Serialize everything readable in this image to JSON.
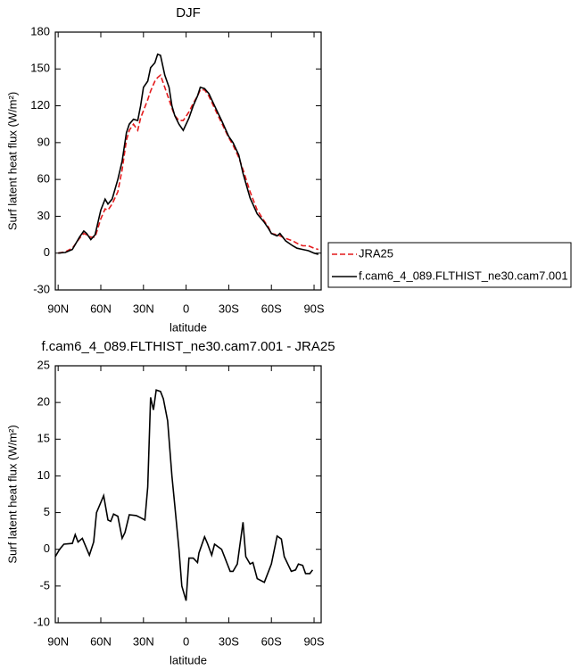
{
  "chart_data": [
    {
      "type": "line",
      "title": "DJF",
      "xlabel": "latitude",
      "ylabel": "Surf latent heat flux (W/m²)",
      "xlim": [
        92,
        -95
      ],
      "ylim": [
        -30,
        180
      ],
      "xticks": [
        {
          "value": 90,
          "label": "90N"
        },
        {
          "value": 60,
          "label": "60N"
        },
        {
          "value": 30,
          "label": "30N"
        },
        0,
        {
          "value": -30,
          "label": "30S"
        },
        {
          "value": -60,
          "label": "60S"
        },
        {
          "value": -90,
          "label": "90S"
        }
      ],
      "yticks": [
        -30,
        0,
        30,
        60,
        90,
        120,
        150,
        180
      ],
      "legend": "right",
      "x": [
        90,
        85,
        80,
        75,
        72,
        70,
        67,
        64,
        60,
        57,
        55,
        52,
        48,
        45,
        42,
        40,
        37,
        34,
        32,
        30,
        27,
        25,
        22,
        20,
        18,
        15,
        12,
        10,
        8,
        5,
        2,
        -2,
        -5,
        -8,
        -10,
        -13,
        -16,
        -20,
        -25,
        -30,
        -33,
        -37,
        -40,
        -45,
        -50,
        -55,
        -58,
        -60,
        -64,
        -66,
        -70,
        -75,
        -78,
        -82,
        -86,
        -90,
        -93
      ],
      "series": [
        {
          "name": "JRA25",
          "color": "#e41a1c",
          "linestyle": "dashed",
          "values": [
            0,
            1,
            4,
            12,
            16,
            15,
            13,
            13,
            28,
            36,
            35,
            40,
            50,
            68,
            92,
            100,
            105,
            100,
            110,
            116,
            125,
            132,
            140,
            143,
            145,
            135,
            125,
            118,
            112,
            108,
            108,
            115,
            122,
            128,
            133,
            133,
            128,
            118,
            106,
            94,
            88,
            78,
            68,
            50,
            35,
            26,
            21,
            16,
            15,
            14,
            12,
            10,
            8,
            6,
            6,
            4,
            3
          ]
        },
        {
          "name": "f.cam6_4_089.FLTHIST_ne30.cam7.001",
          "color": "#000000",
          "linestyle": "solid",
          "values": [
            0,
            0.5,
            3,
            13,
            18,
            16,
            11,
            15,
            35,
            44,
            40,
            44,
            60,
            75,
            98,
            105,
            109,
            108,
            120,
            135,
            140,
            151,
            155,
            162,
            161,
            145,
            135,
            120,
            112,
            105,
            100,
            110,
            120,
            128,
            135,
            134,
            130,
            120,
            108,
            95,
            90,
            80,
            65,
            45,
            32,
            25,
            20,
            16,
            14,
            16,
            10,
            6,
            4,
            3,
            2,
            0,
            -1
          ]
        }
      ]
    },
    {
      "type": "line",
      "title": "f.cam6_4_089.FLTHIST_ne30.cam7.001 - JRA25",
      "xlabel": "latitude",
      "ylabel": "Surf latent heat flux (W/m²)",
      "xlim": [
        92,
        -95
      ],
      "ylim": [
        -10,
        25
      ],
      "xticks": [
        {
          "value": 90,
          "label": "90N"
        },
        {
          "value": 60,
          "label": "60N"
        },
        {
          "value": 30,
          "label": "30N"
        },
        0,
        {
          "value": -30,
          "label": "30S"
        },
        {
          "value": -60,
          "label": "60S"
        },
        {
          "value": -90,
          "label": "90S"
        }
      ],
      "yticks": [
        -10,
        -5,
        0,
        5,
        10,
        15,
        20,
        25
      ],
      "x": [
        92,
        89,
        86,
        80,
        78,
        76,
        73,
        68,
        65,
        63,
        58,
        55,
        53,
        51,
        48,
        45,
        43,
        40,
        35,
        32,
        29,
        27,
        25,
        23,
        21,
        18,
        16,
        13,
        10,
        8,
        5,
        3,
        0,
        -2,
        -5,
        -8,
        -9,
        -13,
        -15,
        -18,
        -20,
        -25,
        -28,
        -31,
        -33,
        -36,
        -40,
        -42,
        -45,
        -47,
        -50,
        -55,
        -60,
        -64,
        -67,
        -69,
        -74,
        -77,
        -79,
        -82,
        -84,
        -87,
        -89
      ],
      "series": [
        {
          "color": "#000000",
          "linestyle": "solid",
          "values": [
            -1,
            0,
            0.7,
            0.8,
            2,
            1,
            1.5,
            -0.8,
            1,
            5,
            7.3,
            4,
            3.8,
            4.8,
            4.5,
            1.5,
            2.3,
            4.7,
            4.6,
            4.3,
            4.0,
            8.5,
            20.7,
            19,
            21.7,
            21.5,
            20.5,
            17.5,
            10,
            6,
            0,
            -5,
            -7,
            -1.2,
            -1.2,
            -1.8,
            -0.5,
            1.7,
            0.8,
            -0.8,
            0.7,
            0,
            -1.5,
            -3,
            -3,
            -2,
            3.7,
            -1,
            -2,
            -1.8,
            -4,
            -4.5,
            -2,
            1.8,
            1.4,
            -1,
            -3,
            -2.8,
            -2,
            -2.2,
            -3.3,
            -3.3,
            -2.8
          ]
        }
      ]
    }
  ]
}
